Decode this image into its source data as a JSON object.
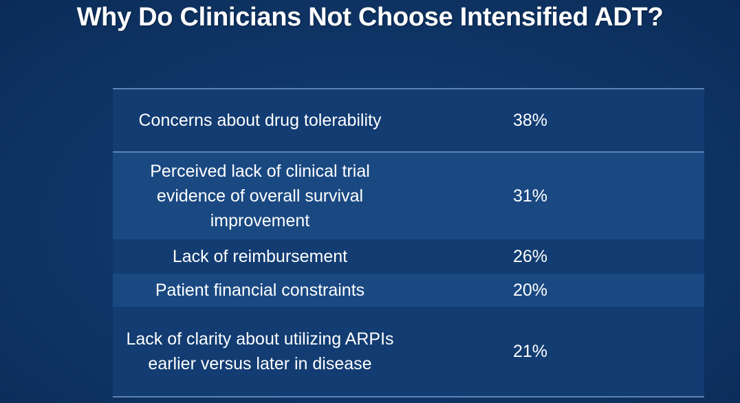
{
  "slide": {
    "title": "Why Do Clinicians Not Choose Intensified ADT?"
  },
  "table": {
    "rows": [
      {
        "reason": "Concerns about drug tolerability",
        "value": "38%"
      },
      {
        "reason": "Perceived lack of clinical trial evidence of overall survival improvement",
        "value": "31%"
      },
      {
        "reason": "Lack of reimbursement",
        "value": "26%"
      },
      {
        "reason": "Patient financial constraints",
        "value": "20%"
      },
      {
        "reason": "Lack of clarity about utilizing ARPIs earlier versus later in disease",
        "value": "21%"
      }
    ]
  },
  "colors": {
    "background": "#0f3264",
    "row_dark": "#123c72",
    "row_light": "#1a4982",
    "rule": "#5f84b6",
    "text": "#ffffff"
  }
}
